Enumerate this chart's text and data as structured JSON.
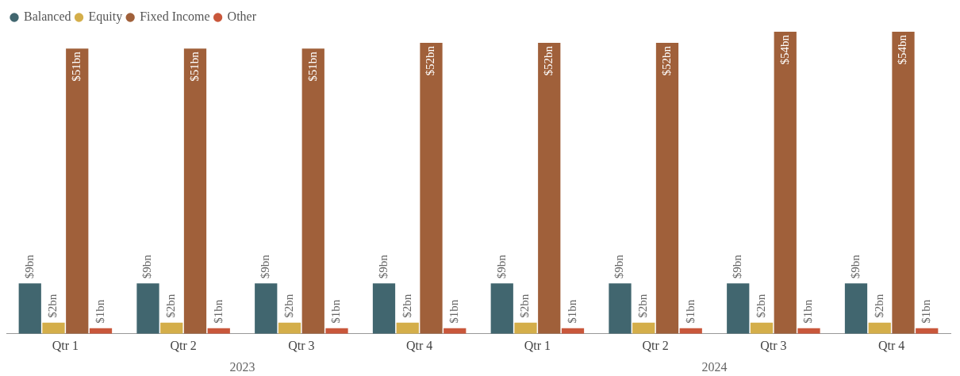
{
  "chart_data": {
    "type": "bar",
    "categories": [
      "Qtr 1",
      "Qtr 2",
      "Qtr 3",
      "Qtr 4",
      "Qtr 1",
      "Qtr 2",
      "Qtr 3",
      "Qtr 4"
    ],
    "series": [
      {
        "name": "Balanced",
        "color": "#41666f",
        "values": [
          9,
          9,
          9,
          9,
          9,
          9,
          9,
          9
        ],
        "value_labels": [
          "$9bn",
          "$9bn",
          "$9bn",
          "$9bn",
          "$9bn",
          "$9bn",
          "$9bn",
          "$9bn"
        ]
      },
      {
        "name": "Equity",
        "color": "#d4ae4a",
        "values": [
          2,
          2,
          2,
          2,
          2,
          2,
          2,
          2
        ],
        "value_labels": [
          "$2bn",
          "$2bn",
          "$2bn",
          "$2bn",
          "$2bn",
          "$2bn",
          "$2bn",
          "$2bn"
        ]
      },
      {
        "name": "Fixed Income",
        "color": "#a0603a",
        "values": [
          51,
          51,
          51,
          52,
          52,
          52,
          54,
          54
        ],
        "value_labels": [
          "$51bn",
          "$51bn",
          "$51bn",
          "$52bn",
          "$52bn",
          "$52bn",
          "$54bn",
          "$54bn"
        ]
      },
      {
        "name": "Other",
        "color": "#c9573b",
        "values": [
          1,
          1,
          1,
          1,
          1,
          1,
          1,
          1
        ],
        "value_labels": [
          "$1bn",
          "$1bn",
          "$1bn",
          "$1bn",
          "$1bn",
          "$1bn",
          "$1bn",
          "$1bn"
        ]
      }
    ],
    "annotations": [
      "2023",
      "2024"
    ],
    "legend": "top left",
    "grid": false
  }
}
